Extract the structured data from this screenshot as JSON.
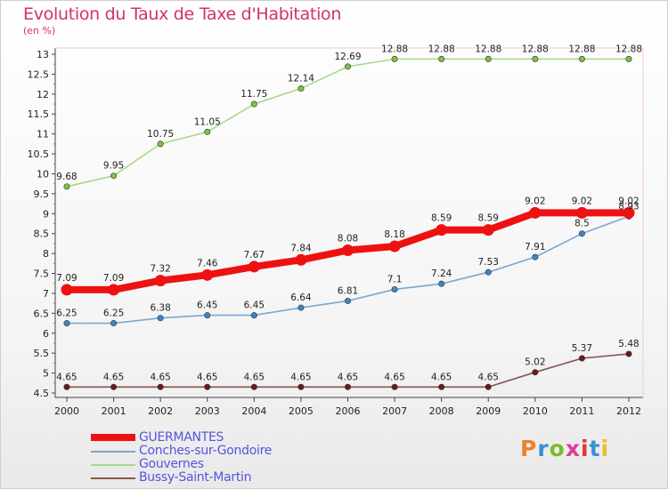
{
  "header": {
    "title": "Evolution du Taux de Taxe d'Habitation",
    "unit": "(en %)"
  },
  "logo": {
    "text": "Proxiti",
    "letter_colors": [
      "#e8862c",
      "#3b8ed6",
      "#7dbb2e",
      "#e03a9a",
      "#d83a3a",
      "#3b8ed6",
      "#e8c02c"
    ]
  },
  "chart_data": {
    "type": "line",
    "x": [
      "2000",
      "2001",
      "2002",
      "2003",
      "2004",
      "2005",
      "2006",
      "2007",
      "2008",
      "2009",
      "2010",
      "2011",
      "2012"
    ],
    "ylim": [
      4.5,
      13
    ],
    "yticks": [
      "4.5",
      "5",
      "5.5",
      "6",
      "6.5",
      "7",
      "7.5",
      "8",
      "8.5",
      "9",
      "9.5",
      "10",
      "10.5",
      "11",
      "11.5",
      "12",
      "12.5",
      "13"
    ],
    "grid": false,
    "legend_position": "bottom-left",
    "series": [
      {
        "name": "GUERMANTES",
        "color": "#ee1111",
        "values": [
          7.09,
          7.09,
          7.32,
          7.46,
          7.67,
          7.84,
          8.08,
          8.18,
          8.59,
          8.59,
          9.02,
          9.02,
          9.02
        ],
        "labels": [
          "7.09",
          "7.09",
          "7.32",
          "7.46",
          "7.67",
          "7.84",
          "8.08",
          "8.18",
          "8.59",
          "8.59",
          "9.02",
          "9.02",
          "9.02"
        ]
      },
      {
        "name": "Conches-sur-Gondoire",
        "color": "#7ba7d2",
        "marker": "#3c86c8",
        "values": [
          6.25,
          6.25,
          6.38,
          6.45,
          6.45,
          6.64,
          6.81,
          7.1,
          7.24,
          7.53,
          7.91,
          8.5,
          8.93
        ],
        "labels": [
          "6.25",
          "6.25",
          "6.38",
          "6.45",
          "6.45",
          "6.64",
          "6.81",
          "7.1",
          "7.24",
          "7.53",
          "7.91",
          "8.5",
          "8.93"
        ]
      },
      {
        "name": "Gouvernes",
        "color": "#a6d98a",
        "marker": "#7cc242",
        "values": [
          9.68,
          9.95,
          10.75,
          11.05,
          11.75,
          12.14,
          12.69,
          12.88,
          12.88,
          12.88,
          12.88,
          12.88,
          12.88
        ],
        "labels": [
          "9.68",
          "9.95",
          "10.75",
          "11.05",
          "11.75",
          "12.14",
          "12.69",
          "12.88",
          "12.88",
          "12.88",
          "12.88",
          "12.88",
          "12.88"
        ]
      },
      {
        "name": "Bussy-Saint-Martin",
        "color": "#8a5252",
        "marker": "#6b1a1a",
        "values": [
          4.65,
          4.65,
          4.65,
          4.65,
          4.65,
          4.65,
          4.65,
          4.65,
          4.65,
          4.65,
          5.02,
          5.37,
          5.48
        ],
        "labels": [
          "4.65",
          "4.65",
          "4.65",
          "4.65",
          "4.65",
          "4.65",
          "4.65",
          "4.65",
          "4.65",
          "4.65",
          "5.02",
          "5.37",
          "5.48"
        ]
      }
    ]
  }
}
